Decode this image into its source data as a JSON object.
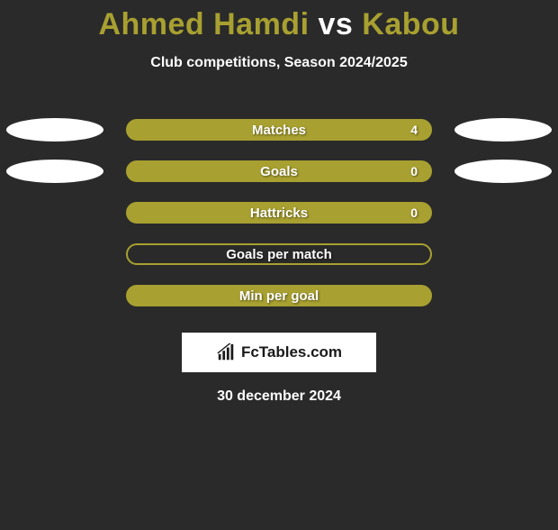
{
  "title": {
    "player1": "Ahmed Hamdi",
    "vs": "vs",
    "player2": "Kabou",
    "player1_color": "#a8a030",
    "vs_color": "#ffffff",
    "player2_color": "#a8a030"
  },
  "subtitle": "Club competitions, Season 2024/2025",
  "stats": [
    {
      "label": "Matches",
      "value": "4",
      "show_value": true,
      "left_ellipse": true,
      "right_ellipse": true,
      "bg": "#a8a030",
      "border": "#a8a030"
    },
    {
      "label": "Goals",
      "value": "0",
      "show_value": true,
      "left_ellipse": true,
      "right_ellipse": true,
      "bg": "#a8a030",
      "border": "#a8a030"
    },
    {
      "label": "Hattricks",
      "value": "0",
      "show_value": true,
      "left_ellipse": false,
      "right_ellipse": false,
      "bg": "#a8a030",
      "border": "#a8a030"
    },
    {
      "label": "Goals per match",
      "value": "",
      "show_value": false,
      "left_ellipse": false,
      "right_ellipse": false,
      "bg": "#2a2a2a",
      "border": "#a8a030"
    },
    {
      "label": "Min per goal",
      "value": "",
      "show_value": false,
      "left_ellipse": false,
      "right_ellipse": false,
      "bg": "#a8a030",
      "border": "#a8a030"
    }
  ],
  "logo": {
    "text": "FcTables.com"
  },
  "date": "30 december 2024",
  "colors": {
    "background": "#2a2a2a",
    "ellipse": "#ffffff",
    "text_white": "#ffffff"
  }
}
